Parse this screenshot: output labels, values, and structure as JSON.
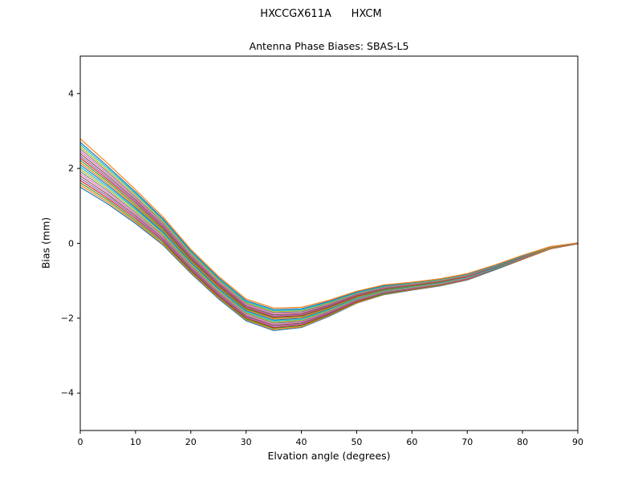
{
  "chart_data": {
    "type": "line",
    "suptitle": "HXCCGX611A      HXCM",
    "title": "Antenna Phase Biases: SBAS-L5",
    "xlabel": "Elvation angle (degrees)",
    "ylabel": "Bias (mm)",
    "xlim": [
      0,
      90
    ],
    "ylim": [
      -5,
      5
    ],
    "xticks": [
      0,
      10,
      20,
      30,
      40,
      50,
      60,
      70,
      80,
      90
    ],
    "yticks": [
      -4,
      -2,
      0,
      2,
      4
    ],
    "grid": false,
    "legend": "none",
    "x": [
      0,
      5,
      10,
      15,
      20,
      25,
      30,
      35,
      40,
      45,
      50,
      55,
      60,
      65,
      70,
      75,
      80,
      85,
      90
    ],
    "series": [
      {
        "id": "line-01",
        "color": "#1f77b4",
        "values": [
          1.5,
          1.05,
          0.53,
          -0.05,
          -0.8,
          -1.48,
          -2.07,
          -2.33,
          -2.25,
          -1.95,
          -1.6,
          -1.37,
          -1.25,
          -1.14,
          -0.98,
          -0.71,
          -0.43,
          -0.15,
          -0.01
        ]
      },
      {
        "id": "line-02",
        "color": "#ff7f0e",
        "values": [
          1.56,
          1.1,
          0.57,
          -0.02,
          -0.77,
          -1.45,
          -2.04,
          -2.3,
          -2.23,
          -1.93,
          -1.59,
          -1.36,
          -1.24,
          -1.13,
          -0.97,
          -0.7,
          -0.43,
          -0.15,
          -0.01
        ]
      },
      {
        "id": "line-03",
        "color": "#2ca02c",
        "values": [
          1.62,
          1.15,
          0.61,
          0.02,
          -0.74,
          -1.42,
          -2.02,
          -2.27,
          -2.2,
          -1.91,
          -1.57,
          -1.35,
          -1.23,
          -1.12,
          -0.96,
          -0.7,
          -0.42,
          -0.14,
          -0.01
        ]
      },
      {
        "id": "line-04",
        "color": "#d62728",
        "values": [
          1.68,
          1.2,
          0.66,
          0.06,
          -0.71,
          -1.4,
          -1.99,
          -2.25,
          -2.18,
          -1.89,
          -1.56,
          -1.33,
          -1.22,
          -1.11,
          -0.96,
          -0.69,
          -0.42,
          -0.14,
          -0.01
        ]
      },
      {
        "id": "line-05",
        "color": "#9467bd",
        "values": [
          1.74,
          1.25,
          0.7,
          0.09,
          -0.68,
          -1.37,
          -1.96,
          -2.22,
          -2.15,
          -1.87,
          -1.54,
          -1.32,
          -1.21,
          -1.1,
          -0.95,
          -0.69,
          -0.41,
          -0.14,
          -0.01
        ]
      },
      {
        "id": "line-06",
        "color": "#8c564b",
        "values": [
          1.8,
          1.3,
          0.74,
          0.13,
          -0.65,
          -1.34,
          -1.94,
          -2.19,
          -2.13,
          -1.85,
          -1.53,
          -1.31,
          -1.2,
          -1.1,
          -0.94,
          -0.68,
          -0.41,
          -0.14,
          -0.01
        ]
      },
      {
        "id": "line-07",
        "color": "#e377c2",
        "values": [
          1.86,
          1.35,
          0.78,
          0.16,
          -0.62,
          -1.31,
          -1.91,
          -2.16,
          -2.1,
          -1.83,
          -1.51,
          -1.3,
          -1.19,
          -1.09,
          -0.93,
          -0.67,
          -0.4,
          -0.13,
          0.0
        ]
      },
      {
        "id": "line-08",
        "color": "#7f7f7f",
        "values": [
          1.92,
          1.4,
          0.82,
          0.2,
          -0.59,
          -1.28,
          -1.88,
          -2.13,
          -2.08,
          -1.81,
          -1.5,
          -1.29,
          -1.18,
          -1.08,
          -0.92,
          -0.67,
          -0.4,
          -0.13,
          0.0
        ]
      },
      {
        "id": "line-09",
        "color": "#bcbd22",
        "values": [
          1.98,
          1.45,
          0.87,
          0.23,
          -0.56,
          -1.26,
          -1.85,
          -2.11,
          -2.05,
          -1.79,
          -1.48,
          -1.27,
          -1.17,
          -1.07,
          -0.92,
          -0.66,
          -0.39,
          -0.13,
          0.0
        ]
      },
      {
        "id": "line-10",
        "color": "#17becf",
        "values": [
          2.04,
          1.5,
          0.91,
          0.27,
          -0.53,
          -1.23,
          -1.83,
          -2.08,
          -2.03,
          -1.77,
          -1.47,
          -1.26,
          -1.16,
          -1.06,
          -0.91,
          -0.66,
          -0.39,
          -0.12,
          0.0
        ]
      },
      {
        "id": "line-11",
        "color": "#1f77b4",
        "values": [
          2.1,
          1.55,
          0.95,
          0.3,
          -0.5,
          -1.2,
          -1.8,
          -2.05,
          -2.0,
          -1.75,
          -1.45,
          -1.25,
          -1.15,
          -1.05,
          -0.9,
          -0.65,
          -0.38,
          -0.12,
          0.0
        ]
      },
      {
        "id": "line-12",
        "color": "#ff7f0e",
        "values": [
          2.16,
          1.6,
          0.99,
          0.34,
          -0.47,
          -1.17,
          -1.77,
          -2.02,
          -1.98,
          -1.73,
          -1.44,
          -1.24,
          -1.14,
          -1.04,
          -0.89,
          -0.64,
          -0.38,
          -0.12,
          0.0
        ]
      },
      {
        "id": "line-13",
        "color": "#2ca02c",
        "values": [
          2.22,
          1.65,
          1.03,
          0.37,
          -0.44,
          -1.14,
          -1.75,
          -1.99,
          -1.95,
          -1.71,
          -1.42,
          -1.23,
          -1.13,
          -1.03,
          -0.88,
          -0.64,
          -0.37,
          -0.11,
          0.0
        ]
      },
      {
        "id": "line-14",
        "color": "#d62728",
        "values": [
          2.28,
          1.7,
          1.08,
          0.41,
          -0.41,
          -1.12,
          -1.72,
          -1.97,
          -1.93,
          -1.69,
          -1.41,
          -1.21,
          -1.12,
          -1.02,
          -0.88,
          -0.63,
          -0.37,
          -0.11,
          0.0
        ]
      },
      {
        "id": "line-15",
        "color": "#9467bd",
        "values": [
          2.34,
          1.75,
          1.12,
          0.44,
          -0.38,
          -1.09,
          -1.69,
          -1.94,
          -1.9,
          -1.67,
          -1.39,
          -1.2,
          -1.11,
          -1.01,
          -0.87,
          -0.63,
          -0.36,
          -0.11,
          0.0
        ]
      },
      {
        "id": "line-16",
        "color": "#8c564b",
        "values": [
          2.4,
          1.8,
          1.16,
          0.48,
          -0.35,
          -1.06,
          -1.67,
          -1.91,
          -1.88,
          -1.65,
          -1.38,
          -1.19,
          -1.1,
          -1.01,
          -0.86,
          -0.62,
          -0.36,
          -0.11,
          0.0
        ]
      },
      {
        "id": "line-17",
        "color": "#e377c2",
        "values": [
          2.46,
          1.85,
          1.2,
          0.51,
          -0.32,
          -1.03,
          -1.64,
          -1.88,
          -1.85,
          -1.63,
          -1.36,
          -1.18,
          -1.09,
          -1.0,
          -0.85,
          -0.61,
          -0.35,
          -0.1,
          0.01
        ]
      },
      {
        "id": "line-18",
        "color": "#7f7f7f",
        "values": [
          2.52,
          1.9,
          1.24,
          0.55,
          -0.29,
          -1.0,
          -1.61,
          -1.85,
          -1.83,
          -1.61,
          -1.35,
          -1.17,
          -1.08,
          -0.99,
          -0.84,
          -0.61,
          -0.35,
          -0.1,
          0.01
        ]
      },
      {
        "id": "line-19",
        "color": "#bcbd22",
        "values": [
          2.58,
          1.95,
          1.29,
          0.58,
          -0.26,
          -0.98,
          -1.58,
          -1.83,
          -1.8,
          -1.59,
          -1.33,
          -1.15,
          -1.07,
          -0.98,
          -0.84,
          -0.6,
          -0.34,
          -0.1,
          0.01
        ]
      },
      {
        "id": "line-20",
        "color": "#17becf",
        "values": [
          2.64,
          2.0,
          1.33,
          0.62,
          -0.23,
          -0.95,
          -1.56,
          -1.8,
          -1.78,
          -1.57,
          -1.32,
          -1.14,
          -1.06,
          -0.97,
          -0.83,
          -0.6,
          -0.34,
          -0.09,
          0.01
        ]
      },
      {
        "id": "line-21",
        "color": "#1f77b4",
        "values": [
          2.7,
          2.05,
          1.37,
          0.65,
          -0.2,
          -0.92,
          -1.53,
          -1.77,
          -1.75,
          -1.55,
          -1.3,
          -1.13,
          -1.05,
          -0.96,
          -0.82,
          -0.59,
          -0.33,
          -0.09,
          0.01
        ]
      },
      {
        "id": "line-22",
        "color": "#ff7f0e",
        "values": [
          2.79,
          2.13,
          1.43,
          0.7,
          -0.16,
          -0.88,
          -1.49,
          -1.73,
          -1.71,
          -1.52,
          -1.28,
          -1.11,
          -1.04,
          -0.95,
          -0.81,
          -0.58,
          -0.32,
          -0.09,
          0.01
        ]
      }
    ]
  }
}
